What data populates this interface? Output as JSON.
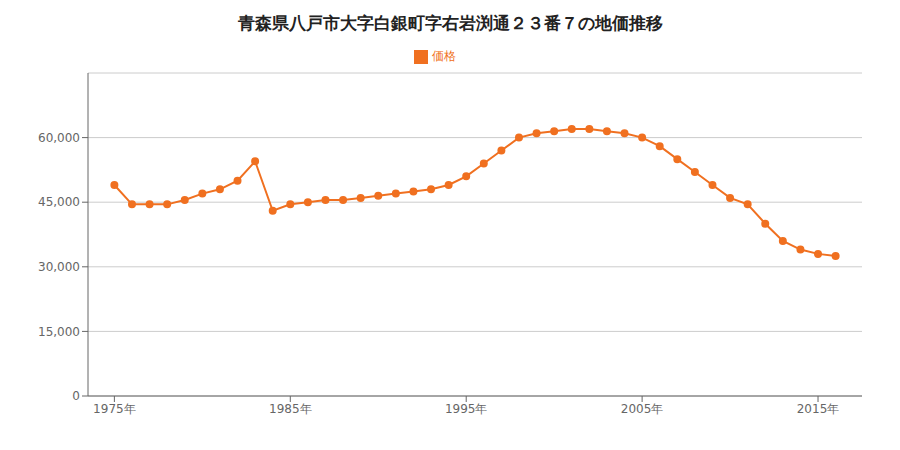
{
  "chart_data": {
    "type": "line",
    "title": "青森県八戸市大字白銀町字右岩渕通２３番７の地価推移",
    "x": [
      1975,
      1976,
      1977,
      1978,
      1979,
      1980,
      1981,
      1982,
      1983,
      1984,
      1985,
      1986,
      1987,
      1988,
      1989,
      1990,
      1991,
      1992,
      1993,
      1994,
      1995,
      1996,
      1997,
      1998,
      1999,
      2000,
      2001,
      2002,
      2003,
      2004,
      2005,
      2006,
      2007,
      2008,
      2009,
      2010,
      2011,
      2012,
      2013,
      2014,
      2015,
      2016
    ],
    "series": [
      {
        "name": "価格",
        "color": "#F07020",
        "marker": "circle",
        "values": [
          49000,
          44500,
          44500,
          44500,
          45500,
          47000,
          48000,
          50000,
          54500,
          43000,
          44500,
          45000,
          45500,
          45500,
          46000,
          46500,
          47000,
          47500,
          48000,
          49000,
          51000,
          54000,
          57000,
          60000,
          61000,
          61500,
          62000,
          62000,
          61500,
          61000,
          60000,
          58000,
          55000,
          52000,
          49000,
          46000,
          44500,
          40000,
          36000,
          34000,
          33000,
          32500
        ]
      }
    ],
    "xlim": [
      1973.5,
      2017.5
    ],
    "xticks": [
      {
        "value": 1975,
        "label": "1975年"
      },
      {
        "value": 1985,
        "label": "1985年"
      },
      {
        "value": 1995,
        "label": "1995年"
      },
      {
        "value": 2005,
        "label": "2005年"
      },
      {
        "value": 2015,
        "label": "2015年"
      }
    ],
    "ylim": [
      0,
      75000
    ],
    "yticks": [
      0,
      {
        "value": 15000,
        "label": "15,000"
      },
      {
        "value": 30000,
        "label": "30,000"
      },
      {
        "value": 45000,
        "label": "45,000"
      },
      {
        "value": 60000,
        "label": "60,000"
      }
    ],
    "grid": true,
    "legend": "top"
  }
}
